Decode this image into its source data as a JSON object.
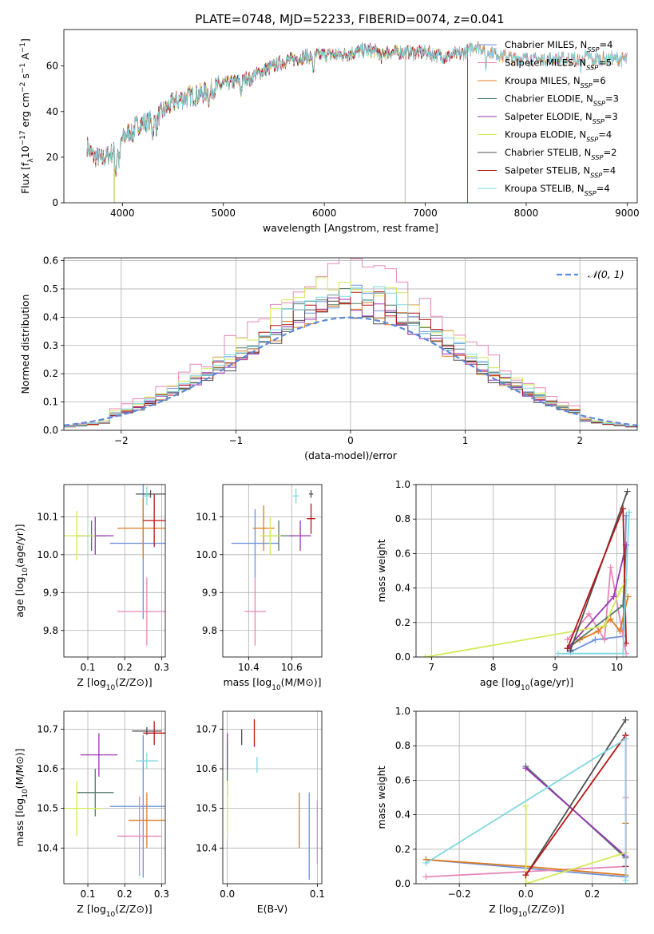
{
  "figure": {
    "title": "PLATE=0748, MJD=52233, FIBERID=0074, z=0.041"
  },
  "colors": {
    "models": [
      "#6a92d8",
      "#e886b8",
      "#e07b20",
      "#507a68",
      "#9a35b5",
      "#d4ea58",
      "#505050",
      "#b81515",
      "#7fd8e0"
    ],
    "gaussian": "#5b8bd9",
    "grid": "#b0b0b0"
  },
  "chart_data": [
    {
      "id": "spectrum",
      "type": "line",
      "xlabel": "wavelength [Angstrom, rest frame]",
      "ylabel": "Flux [fλ10⁻¹⁷ erg cm⁻² s⁻¹ A⁻¹]",
      "xlim": [
        3420,
        9100
      ],
      "ylim": [
        0,
        76
      ],
      "xticks": [
        4000,
        5000,
        6000,
        7000,
        8000,
        9000
      ],
      "yticks": [
        0,
        20,
        40,
        60
      ],
      "grid": false,
      "legend_position": "top-right",
      "continuum": {
        "x": [
          3650,
          3700,
          3800,
          3900,
          4000,
          4100,
          4200,
          4300,
          4400,
          4500,
          4600,
          4800,
          5000,
          5200,
          5400,
          5600,
          5800,
          6000,
          6200,
          6400,
          6600,
          6800,
          7000,
          7200,
          7400,
          7500,
          7600,
          7800,
          8000,
          8200,
          8400,
          8600,
          8800
        ],
        "y": [
          25,
          21,
          19,
          22,
          28,
          33,
          35,
          36,
          40,
          44,
          46,
          48,
          52,
          54,
          58,
          62,
          64,
          65,
          65,
          67,
          66,
          66,
          66,
          64,
          66,
          69,
          67,
          64,
          63,
          63,
          63,
          64,
          63
        ]
      },
      "legend": [
        "Chabrier MILES, N_SSP=4",
        "Salpeter MILES, N_SSP=5",
        "Kroupa MILES, N_SSP=6",
        "Chabrier ELODIE, N_SSP=3",
        "Salpeter ELODIE, N_SSP=3",
        "Kroupa ELODIE, N_SSP=4",
        "Chabrier STELIB, N_SSP=2",
        "Salpeter STELIB, N_SSP=4",
        "Kroupa STELIB, N_SSP=4"
      ],
      "series": [
        {
          "name": "Chabrier MILES, N_SSP=4",
          "end": 9000
        },
        {
          "name": "Salpeter MILES, N_SSP=5",
          "end": 9000
        },
        {
          "name": "Kroupa MILES, N_SSP=6",
          "end": 9000
        },
        {
          "name": "Chabrier ELODIE, N_SSP=3",
          "end": 6800,
          "drop_start": 3920
        },
        {
          "name": "Salpeter ELODIE, N_SSP=3",
          "end": 6800,
          "drop_start": 3920
        },
        {
          "name": "Kroupa ELODIE, N_SSP=4",
          "end": 6800,
          "drop_start": 3920
        },
        {
          "name": "Chabrier STELIB, N_SSP=2",
          "end": 7420
        },
        {
          "name": "Salpeter STELIB, N_SSP=4",
          "end": 7420
        },
        {
          "name": "Kroupa STELIB, N_SSP=4",
          "end": 9000
        }
      ]
    },
    {
      "id": "residuals",
      "type": "histogram",
      "xlabel": "(data-model)/error",
      "ylabel": "Normed distribution",
      "xlim": [
        -2.5,
        2.5
      ],
      "ylim": [
        0,
        0.61
      ],
      "xticks": [
        -2,
        -1,
        0,
        1,
        2
      ],
      "yticks": [
        0.0,
        0.1,
        0.2,
        0.3,
        0.4,
        0.5,
        0.6
      ],
      "grid": true,
      "legend_position": "top-right",
      "legend": [
        "𝒩(0, 1)"
      ],
      "bin_width": 0.1,
      "peak_values": [
        0.48,
        0.58,
        0.44,
        0.47,
        0.45,
        0.52,
        0.43,
        0.47,
        0.49
      ]
    },
    {
      "id": "age_vs_Z",
      "type": "errorbar",
      "xlabel": "Z [log₁₀(Z/Z⊙)]",
      "ylabel": "age  [log₁₀(age/yr)]",
      "xlim": [
        0.035,
        0.31
      ],
      "ylim": [
        9.73,
        10.185
      ],
      "xticks": [
        0.1,
        0.2,
        0.3
      ],
      "yticks": [
        9.8,
        9.9,
        10.0,
        10.1
      ],
      "grid": true,
      "points": [
        {
          "x": 0.25,
          "y": 10.03,
          "xerr": 0.09,
          "yerr": 0.2
        },
        {
          "x": 0.26,
          "y": 9.85,
          "xerr": 0.08,
          "yerr": 0.09
        },
        {
          "x": 0.25,
          "y": 10.07,
          "xerr": 0.07,
          "yerr": 0.08
        },
        {
          "x": 0.11,
          "y": 10.05,
          "xerr": 0.04,
          "yerr": 0.04
        },
        {
          "x": 0.12,
          "y": 10.05,
          "xerr": 0.05,
          "yerr": 0.05
        },
        {
          "x": 0.07,
          "y": 10.05,
          "xerr": 0.05,
          "yerr": 0.065
        },
        {
          "x": 0.27,
          "y": 10.16,
          "xerr": 0.04,
          "yerr": 0.01
        },
        {
          "x": 0.28,
          "y": 10.09,
          "xerr": 0.03,
          "yerr": 0.07
        },
        {
          "x": 0.26,
          "y": 10.155,
          "xerr": 0.01,
          "yerr": 0.025
        }
      ]
    },
    {
      "id": "age_vs_mass",
      "type": "errorbar",
      "xlabel": "mass [log₁₀(M/M⊙)]",
      "ylabel": "",
      "xlim": [
        10.28,
        10.74
      ],
      "ylim": [
        9.73,
        10.185
      ],
      "xticks": [
        10.4,
        10.6
      ],
      "yticks": [
        9.8,
        9.9,
        10.0,
        10.1
      ],
      "grid": true,
      "points": [
        {
          "x": 10.43,
          "y": 10.03,
          "xerr": 0.11,
          "yerr": 0.09
        },
        {
          "x": 10.43,
          "y": 9.85,
          "xerr": 0.05,
          "yerr": 0.09
        },
        {
          "x": 10.47,
          "y": 10.07,
          "xerr": 0.05,
          "yerr": 0.06
        },
        {
          "x": 10.54,
          "y": 10.05,
          "xerr": 0.07,
          "yerr": 0.04
        },
        {
          "x": 10.64,
          "y": 10.05,
          "xerr": 0.05,
          "yerr": 0.04
        },
        {
          "x": 10.5,
          "y": 10.05,
          "xerr": 0.05,
          "yerr": 0.05
        },
        {
          "x": 10.69,
          "y": 10.16,
          "xerr": 0.01,
          "yerr": 0.01
        },
        {
          "x": 10.69,
          "y": 10.095,
          "xerr": 0.02,
          "yerr": 0.04
        },
        {
          "x": 10.62,
          "y": 10.155,
          "xerr": 0.015,
          "yerr": 0.02
        }
      ]
    },
    {
      "id": "weight_vs_age",
      "type": "line",
      "xlabel": "age  [log₁₀(age/yr)]",
      "ylabel": "mass weight",
      "xlim": [
        6.75,
        10.33
      ],
      "ylim": [
        0,
        1.0
      ],
      "xticks": [
        7,
        8,
        9,
        10
      ],
      "yticks": [
        0.0,
        0.2,
        0.4,
        0.6,
        0.8,
        1.0
      ],
      "grid": true,
      "series": [
        {
          "name": "Chabrier MILES, N_SSP=4",
          "points": [
            [
              9.25,
              0.03
            ],
            [
              9.65,
              0.1
            ],
            [
              10.1,
              0.12
            ],
            [
              10.15,
              0.82
            ]
          ]
        },
        {
          "name": "Salpeter MILES, N_SSP=5",
          "points": [
            [
              9.2,
              0.1
            ],
            [
              9.55,
              0.25
            ],
            [
              9.8,
              0.1
            ],
            [
              9.9,
              0.52
            ],
            [
              10.15,
              0.02
            ]
          ]
        },
        {
          "name": "Kroupa MILES, N_SSP=6",
          "points": [
            [
              9.2,
              0.05
            ],
            [
              9.4,
              0.1
            ],
            [
              9.7,
              0.15
            ],
            [
              9.9,
              0.22
            ],
            [
              10.05,
              0.15
            ],
            [
              10.18,
              0.35
            ]
          ]
        },
        {
          "name": "Chabrier ELODIE, N_SSP=3",
          "points": [
            [
              9.2,
              0.05
            ],
            [
              10.1,
              0.3
            ],
            [
              10.15,
              0.65
            ]
          ]
        },
        {
          "name": "Salpeter ELODIE, N_SSP=3",
          "points": [
            [
              9.2,
              0.05
            ],
            [
              9.95,
              0.35
            ],
            [
              10.15,
              0.65
            ]
          ]
        },
        {
          "name": "Kroupa ELODIE, N_SSP=4",
          "points": [
            [
              6.9,
              0.0
            ],
            [
              9.8,
              0.18
            ],
            [
              10.05,
              0.38
            ],
            [
              10.15,
              0.45
            ]
          ]
        },
        {
          "name": "Chabrier STELIB, N_SSP=2",
          "points": [
            [
              9.25,
              0.04
            ],
            [
              10.17,
              0.96
            ]
          ]
        },
        {
          "name": "Salpeter STELIB, N_SSP=4",
          "points": [
            [
              9.2,
              0.05
            ],
            [
              10.1,
              0.86
            ],
            [
              10.15,
              0.08
            ]
          ]
        },
        {
          "name": "Kroupa STELIB, N_SSP=4",
          "points": [
            [
              9.05,
              0.02
            ],
            [
              10.1,
              0.02
            ],
            [
              10.2,
              0.84
            ]
          ]
        }
      ]
    },
    {
      "id": "mass_vs_Z",
      "type": "errorbar",
      "xlabel": "Z [log₁₀(Z/Z⊙)]",
      "ylabel": "mass [log₁₀(M/M⊙)]",
      "xlim": [
        0.035,
        0.31
      ],
      "ylim": [
        10.31,
        10.745
      ],
      "xticks": [
        0.1,
        0.2,
        0.3
      ],
      "yticks": [
        10.4,
        10.5,
        10.6,
        10.7
      ],
      "grid": true,
      "points": [
        {
          "x": 0.25,
          "y": 10.505,
          "xerr": 0.09,
          "yerr": 0.18
        },
        {
          "x": 0.24,
          "y": 10.43,
          "xerr": 0.06,
          "yerr": 0.1
        },
        {
          "x": 0.26,
          "y": 10.47,
          "xerr": 0.05,
          "yerr": 0.07
        },
        {
          "x": 0.12,
          "y": 10.54,
          "xerr": 0.05,
          "yerr": 0.06
        },
        {
          "x": 0.13,
          "y": 10.635,
          "xerr": 0.05,
          "yerr": 0.055
        },
        {
          "x": 0.07,
          "y": 10.5,
          "xerr": 0.07,
          "yerr": 0.07
        },
        {
          "x": 0.26,
          "y": 10.695,
          "xerr": 0.04,
          "yerr": 0.01
        },
        {
          "x": 0.28,
          "y": 10.69,
          "xerr": 0.03,
          "yerr": 0.03
        },
        {
          "x": 0.26,
          "y": 10.62,
          "xerr": 0.03,
          "yerr": 0.02
        }
      ]
    },
    {
      "id": "mass_vs_ebv",
      "type": "errorbar",
      "xlabel": "E(B-V)",
      "ylabel": "",
      "xlim": [
        -0.005,
        0.105
      ],
      "ylim": [
        10.31,
        10.745
      ],
      "xticks": [
        0.0,
        0.1
      ],
      "yticks": [
        10.4,
        10.5,
        10.6,
        10.7
      ],
      "grid": true,
      "points": [
        {
          "x": 0.091,
          "y": 10.43,
          "xerr": 0.0,
          "yerr": 0.11
        },
        {
          "x": 0.1,
          "y": 10.44,
          "xerr": 0.0,
          "yerr": 0.08
        },
        {
          "x": 0.08,
          "y": 10.47,
          "xerr": 0.0,
          "yerr": 0.07
        },
        {
          "x": 0.0,
          "y": 10.6,
          "xerr": 0.0,
          "yerr": 0.07
        },
        {
          "x": 0.0,
          "y": 10.645,
          "xerr": 0.0,
          "yerr": 0.045
        },
        {
          "x": 0.0,
          "y": 10.5,
          "xerr": 0.0,
          "yerr": 0.07
        },
        {
          "x": 0.016,
          "y": 10.68,
          "xerr": 0.0,
          "yerr": 0.02
        },
        {
          "x": 0.03,
          "y": 10.69,
          "xerr": 0.0,
          "yerr": 0.035
        },
        {
          "x": 0.033,
          "y": 10.61,
          "xerr": 0.0,
          "yerr": 0.02
        }
      ]
    },
    {
      "id": "weight_vs_Z",
      "type": "line",
      "xlabel": "Z [log₁₀(Z/Z⊙)]",
      "ylabel": "mass weight",
      "xlim": [
        -0.33,
        0.335
      ],
      "ylim": [
        0,
        1.0
      ],
      "xticks": [
        -0.2,
        0.0,
        0.2
      ],
      "yticks": [
        0.0,
        0.2,
        0.4,
        0.6,
        0.8,
        1.0
      ],
      "grid": true,
      "series": [
        {
          "name": "Chabrier MILES, N_SSP=4",
          "points": [
            [
              -0.3,
              0.14
            ],
            [
              0.0,
              0.09
            ],
            [
              0.3,
              0.04
            ],
            [
              0.3,
              0.86
            ]
          ]
        },
        {
          "name": "Salpeter MILES, N_SSP=5",
          "points": [
            [
              -0.3,
              0.04
            ],
            [
              0.0,
              0.07
            ],
            [
              0.3,
              0.1
            ],
            [
              0.3,
              0.5
            ]
          ]
        },
        {
          "name": "Kroupa MILES, N_SSP=6",
          "points": [
            [
              -0.3,
              0.14
            ],
            [
              0.0,
              0.1
            ],
            [
              0.3,
              0.05
            ],
            [
              0.3,
              0.35
            ]
          ]
        },
        {
          "name": "Chabrier ELODIE, N_SSP=3",
          "points": [
            [
              0.0,
              0.68
            ],
            [
              0.3,
              0.15
            ]
          ]
        },
        {
          "name": "Salpeter ELODIE, N_SSP=3",
          "points": [
            [
              0.0,
              0.67
            ],
            [
              0.3,
              0.16
            ]
          ]
        },
        {
          "name": "Kroupa ELODIE, N_SSP=4",
          "points": [
            [
              0.0,
              0.45
            ],
            [
              0.0,
              0.0
            ],
            [
              0.3,
              0.18
            ]
          ]
        },
        {
          "name": "Chabrier STELIB, N_SSP=2",
          "points": [
            [
              0.0,
              0.05
            ],
            [
              0.3,
              0.95
            ]
          ]
        },
        {
          "name": "Salpeter STELIB, N_SSP=4",
          "points": [
            [
              0.0,
              0.05
            ],
            [
              0.3,
              0.86
            ],
            [
              0.3,
              0.1
            ]
          ]
        },
        {
          "name": "Kroupa STELIB, N_SSP=4",
          "points": [
            [
              -0.3,
              0.12
            ],
            [
              0.3,
              0.84
            ],
            [
              0.3,
              0.02
            ]
          ]
        }
      ]
    }
  ]
}
